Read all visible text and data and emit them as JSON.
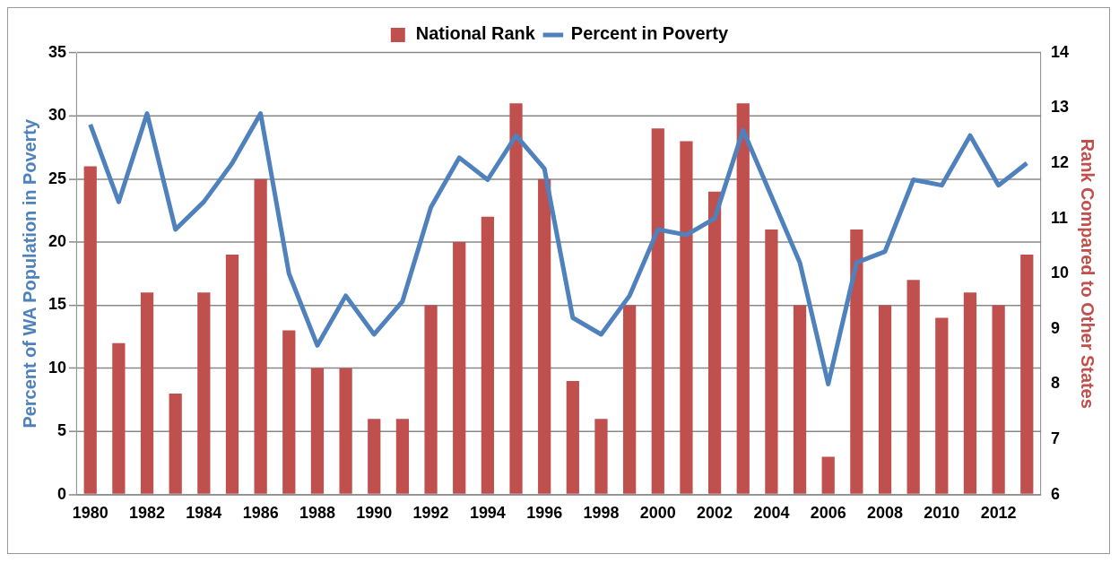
{
  "chart_data": {
    "type": "bar",
    "ylabel": "Percent of WA Population in Poverty",
    "y2label": "Rank Compared to Other States",
    "categories": [
      "1980",
      null,
      "1982",
      null,
      "1984",
      null,
      "1986",
      null,
      "1988",
      null,
      "1990",
      null,
      "1992",
      null,
      "1994",
      null,
      "1996",
      null,
      "1998",
      null,
      "2000",
      null,
      "2002",
      null,
      "2004",
      null,
      "2006",
      null,
      "2008",
      null,
      "2010",
      null,
      "2012",
      null
    ],
    "series": [
      {
        "name": "National Rank",
        "color": "#c0504d",
        "values": [
          26,
          12,
          16,
          8,
          16,
          19,
          25,
          13,
          10,
          10,
          6,
          6,
          15,
          20,
          22,
          31,
          25,
          9,
          6,
          15,
          29,
          28,
          24,
          31,
          21,
          15,
          3,
          21,
          15,
          17,
          14,
          16,
          15,
          19
        ]
      },
      {
        "name": "Percent in Poverty",
        "type": "line",
        "axis": "y2",
        "color": "#4f81bd",
        "values": [
          12.7,
          11.3,
          12.9,
          10.8,
          11.3,
          12.0,
          12.9,
          10.0,
          8.7,
          9.6,
          8.9,
          9.5,
          11.2,
          12.1,
          11.7,
          12.5,
          11.9,
          9.2,
          8.9,
          9.6,
          10.8,
          10.7,
          11.0,
          12.6,
          11.4,
          10.2,
          8.0,
          10.2,
          10.4,
          11.7,
          11.6,
          12.5,
          11.6,
          12.0
        ]
      }
    ],
    "ylim": [
      0,
      35
    ],
    "yticks": [
      0,
      5,
      10,
      15,
      20,
      25,
      30,
      35
    ],
    "y2lim": [
      6,
      14
    ],
    "y2ticks": [
      6,
      7,
      8,
      9,
      10,
      11,
      12,
      13,
      14
    ],
    "grid": "y",
    "legend": "top",
    "marker": "none",
    "line_style": "solid"
  }
}
